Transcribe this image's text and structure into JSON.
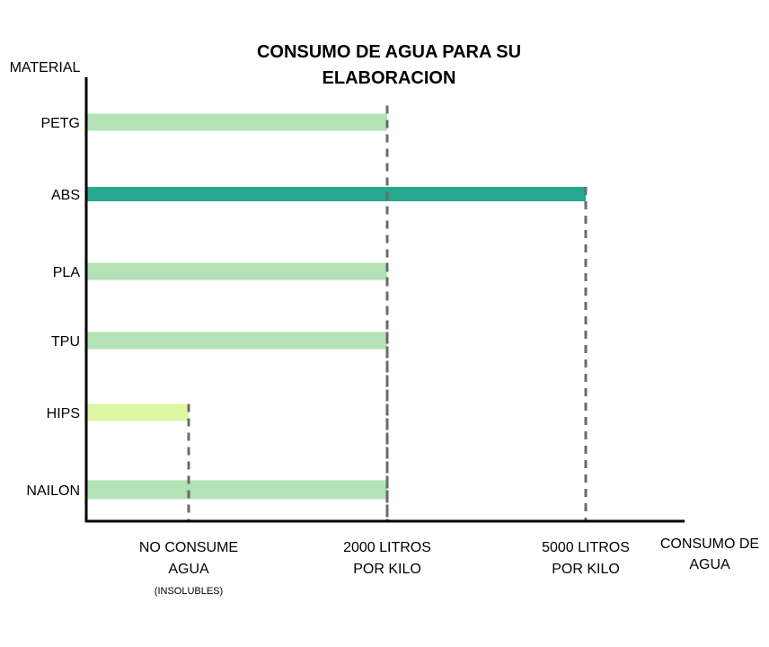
{
  "chart_data": {
    "type": "bar",
    "orientation": "horizontal",
    "title": [
      "CONSUMO DE AGUA PARA SU",
      "ELABORACION"
    ],
    "ylabel": "MATERIAL",
    "xlabel": [
      "CONSUMO DE",
      "AGUA"
    ],
    "categories": [
      "PETG",
      "ABS",
      "PLA",
      "TPU",
      "HIPS",
      "NAILON"
    ],
    "values": [
      2000,
      5000,
      2000,
      2000,
      0,
      2000
    ],
    "colors": [
      "#b2e2b5",
      "#26a98e",
      "#b2e2b5",
      "#b2e2b5",
      "#def7a4",
      "#b2e2b5"
    ],
    "x_ticks": [
      {
        "value": 0,
        "lines": [
          "NO CONSUME",
          "AGUA"
        ],
        "note": "(INSOLUBLES)"
      },
      {
        "value": 2000,
        "lines": [
          "2000 LITROS",
          "POR KILO"
        ]
      },
      {
        "value": 5000,
        "lines": [
          "5000 LITROS",
          "POR KILO"
        ]
      }
    ],
    "grid": false,
    "reference_lines": "dashed"
  }
}
